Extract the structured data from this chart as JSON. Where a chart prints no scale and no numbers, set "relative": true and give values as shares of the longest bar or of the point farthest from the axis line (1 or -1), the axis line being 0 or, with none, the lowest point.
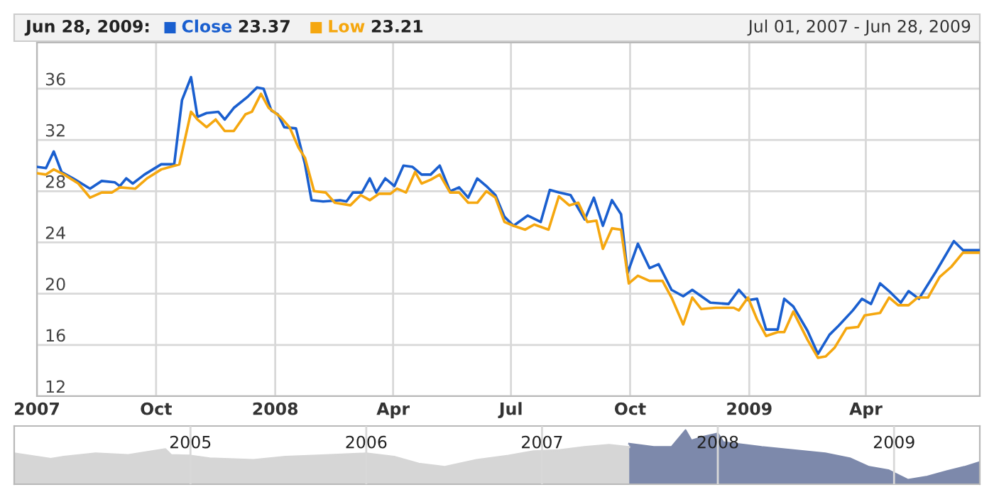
{
  "chart_data": [
    {
      "type": "line",
      "legend": "top left",
      "grid": true,
      "xlim": [
        "2007-07-01",
        "2009-06-28"
      ],
      "xticks": [
        {
          "value": "2007-07-01",
          "label": "2007"
        },
        {
          "value": "2007-10-01",
          "label": "Oct"
        },
        {
          "value": "2008-01-01",
          "label": "2008"
        },
        {
          "value": "2008-04-01",
          "label": "Apr"
        },
        {
          "value": "2008-07-01",
          "label": "Jul"
        },
        {
          "value": "2008-10-01",
          "label": "Oct"
        },
        {
          "value": "2009-01-01",
          "label": "2009"
        },
        {
          "value": "2009-04-01",
          "label": "Apr"
        }
      ],
      "ylim": [
        12,
        39.6
      ],
      "yticks": [
        12,
        16,
        20,
        24,
        28,
        32,
        36
      ],
      "annotations": [
        "Jun 28, 2009:",
        "23.37",
        "23.21",
        "Jul 01, 2007 - Jun 28, 2009"
      ],
      "series": [
        {
          "name": "Close",
          "color": "#1a5fcf",
          "x": [
            "2007-07-01",
            "2007-07-08",
            "2007-07-14",
            "2007-07-20",
            "2007-07-29",
            "2007-08-11",
            "2007-08-20",
            "2007-08-30",
            "2007-09-03",
            "2007-09-08",
            "2007-09-13",
            "2007-09-22",
            "2007-10-05",
            "2007-10-15",
            "2007-10-21",
            "2007-10-28",
            "2007-11-02",
            "2007-11-09",
            "2007-11-18",
            "2007-11-23",
            "2007-11-30",
            "2007-12-11",
            "2007-12-18",
            "2007-12-23",
            "2007-12-29",
            "2008-01-03",
            "2008-01-08",
            "2008-01-17",
            "2008-01-24",
            "2008-01-29",
            "2008-02-07",
            "2008-02-20",
            "2008-02-25",
            "2008-03-01",
            "2008-03-08",
            "2008-03-14",
            "2008-03-19",
            "2008-03-26",
            "2008-04-02",
            "2008-04-09",
            "2008-04-16",
            "2008-04-23",
            "2008-04-30",
            "2008-05-07",
            "2008-05-15",
            "2008-05-22",
            "2008-05-29",
            "2008-06-05",
            "2008-06-12",
            "2008-06-19",
            "2008-06-26",
            "2008-07-03",
            "2008-07-14",
            "2008-07-24",
            "2008-07-31",
            "2008-08-07",
            "2008-08-16",
            "2008-08-27",
            "2008-09-03",
            "2008-09-10",
            "2008-09-17",
            "2008-09-24",
            "2008-09-29",
            "2008-10-07",
            "2008-10-16",
            "2008-10-23",
            "2008-11-02",
            "2008-11-11",
            "2008-11-18",
            "2008-12-02",
            "2008-12-16",
            "2008-12-24",
            "2008-12-31",
            "2009-01-07",
            "2009-01-14",
            "2009-01-23",
            "2009-01-28",
            "2009-02-04",
            "2009-02-15",
            "2009-02-23",
            "2009-03-04",
            "2009-03-11",
            "2009-03-22",
            "2009-03-29",
            "2009-04-05",
            "2009-04-12",
            "2009-04-19",
            "2009-04-28",
            "2009-05-04",
            "2009-05-12",
            "2009-05-25",
            "2009-06-08",
            "2009-06-15",
            "2009-06-28"
          ],
          "values": [
            29.9,
            29.8,
            31.1,
            29.5,
            29.0,
            28.2,
            28.8,
            28.7,
            28.4,
            29.0,
            28.6,
            29.3,
            30.1,
            30.1,
            35.1,
            36.9,
            33.8,
            34.1,
            34.2,
            33.6,
            34.5,
            35.4,
            36.1,
            36.0,
            34.3,
            34.0,
            33.0,
            32.9,
            30.1,
            27.3,
            27.2,
            27.3,
            27.2,
            27.9,
            27.9,
            29.0,
            27.9,
            29.0,
            28.4,
            30.0,
            29.9,
            29.3,
            29.3,
            30.0,
            28.0,
            28.3,
            27.5,
            29.0,
            28.4,
            27.7,
            26.0,
            25.3,
            26.1,
            25.6,
            28.1,
            27.9,
            27.7,
            25.8,
            27.5,
            25.3,
            27.3,
            26.2,
            21.6,
            23.9,
            22.0,
            22.3,
            20.3,
            19.8,
            20.3,
            19.3,
            19.2,
            20.3,
            19.5,
            19.6,
            17.2,
            17.2,
            19.6,
            19.0,
            17.1,
            15.3,
            16.8,
            17.5,
            18.7,
            19.6,
            19.2,
            20.8,
            20.2,
            19.3,
            20.2,
            19.6,
            21.7,
            24.1,
            23.4,
            23.4
          ]
        },
        {
          "name": "Low",
          "color": "#f5a70f",
          "x": [
            "2007-07-01",
            "2007-07-08",
            "2007-07-14",
            "2007-07-22",
            "2007-08-02",
            "2007-08-11",
            "2007-08-20",
            "2007-08-28",
            "2007-09-03",
            "2007-09-15",
            "2007-09-24",
            "2007-10-05",
            "2007-10-19",
            "2007-10-28",
            "2007-11-02",
            "2007-11-09",
            "2007-11-16",
            "2007-11-23",
            "2007-11-30",
            "2007-12-09",
            "2007-12-14",
            "2007-12-21",
            "2007-12-27",
            "2008-01-05",
            "2008-01-12",
            "2008-01-19",
            "2008-01-24",
            "2008-01-31",
            "2008-02-09",
            "2008-02-16",
            "2008-02-28",
            "2008-03-07",
            "2008-03-14",
            "2008-03-21",
            "2008-03-30",
            "2008-04-04",
            "2008-04-11",
            "2008-04-18",
            "2008-04-23",
            "2008-04-30",
            "2008-05-07",
            "2008-05-15",
            "2008-05-22",
            "2008-05-29",
            "2008-06-05",
            "2008-06-12",
            "2008-06-19",
            "2008-06-26",
            "2008-07-03",
            "2008-07-12",
            "2008-07-19",
            "2008-07-30",
            "2008-08-07",
            "2008-08-15",
            "2008-08-22",
            "2008-08-29",
            "2008-09-05",
            "2008-09-10",
            "2008-09-17",
            "2008-09-24",
            "2008-09-30",
            "2008-10-07",
            "2008-10-16",
            "2008-10-26",
            "2008-11-02",
            "2008-11-11",
            "2008-11-18",
            "2008-11-25",
            "2008-12-06",
            "2008-12-20",
            "2008-12-24",
            "2008-12-31",
            "2009-01-07",
            "2009-01-14",
            "2009-01-23",
            "2009-01-28",
            "2009-02-04",
            "2009-02-15",
            "2009-02-23",
            "2009-03-01",
            "2009-03-08",
            "2009-03-17",
            "2009-03-26",
            "2009-03-31",
            "2009-04-12",
            "2009-04-19",
            "2009-04-26",
            "2009-05-04",
            "2009-05-11",
            "2009-05-19",
            "2009-05-28",
            "2009-06-06",
            "2009-06-15",
            "2009-06-28"
          ],
          "values": [
            29.4,
            29.3,
            29.7,
            29.3,
            28.6,
            27.5,
            27.9,
            27.9,
            28.3,
            28.2,
            29.0,
            29.7,
            30.1,
            34.2,
            33.6,
            33.0,
            33.6,
            32.7,
            32.7,
            34.0,
            34.2,
            35.6,
            34.5,
            33.8,
            33.0,
            31.4,
            30.6,
            28.0,
            27.9,
            27.1,
            26.9,
            27.7,
            27.3,
            27.8,
            27.8,
            28.2,
            27.9,
            29.5,
            28.6,
            28.9,
            29.3,
            27.9,
            27.9,
            27.1,
            27.1,
            28.0,
            27.5,
            25.6,
            25.3,
            25.0,
            25.4,
            25.0,
            27.6,
            26.9,
            27.1,
            25.6,
            25.7,
            23.5,
            25.1,
            25.0,
            20.8,
            21.4,
            21.0,
            21.0,
            19.7,
            17.6,
            19.7,
            18.8,
            18.9,
            18.9,
            18.7,
            19.7,
            18.0,
            16.7,
            17.0,
            17.0,
            18.6,
            16.4,
            15.0,
            15.1,
            15.8,
            17.3,
            17.4,
            18.3,
            18.5,
            19.7,
            19.1,
            19.1,
            19.7,
            19.7,
            21.3,
            22.1,
            23.2,
            23.2
          ]
        }
      ]
    },
    {
      "type": "area",
      "relative": true,
      "grid": "x",
      "tick_labels": "x",
      "xlim": [
        "2004-01-01",
        "2009-06-28"
      ],
      "xticks": [
        {
          "value": "2005-01-01",
          "label": "2005"
        },
        {
          "value": "2006-01-01",
          "label": "2006"
        },
        {
          "value": "2007-01-01",
          "label": "2007"
        },
        {
          "value": "2008-01-01",
          "label": "2008"
        },
        {
          "value": "2009-01-01",
          "label": "2009"
        }
      ],
      "series": [
        {
          "color": "#d6d6d6",
          "x": [
            "2004-01-01",
            "2004-03-17",
            "2004-04-13",
            "2004-06-18",
            "2004-08-23",
            "2004-11-10",
            "2004-11-22",
            "2005-01-01",
            "2005-02-10",
            "2005-05-12",
            "2005-07-17",
            "2005-09-22",
            "2006-01-01",
            "2006-02-28",
            "2006-04-20",
            "2006-06-13",
            "2006-08-18",
            "2006-10-23",
            "2006-12-14",
            "2007-02-05",
            "2007-03-30",
            "2007-05-20",
            "2007-07-01"
          ],
          "values": [
            0.57,
            0.47,
            0.51,
            0.57,
            0.54,
            0.65,
            0.54,
            0.53,
            0.48,
            0.45,
            0.51,
            0.53,
            0.57,
            0.51,
            0.38,
            0.32,
            0.45,
            0.53,
            0.61,
            0.63,
            0.69,
            0.73,
            0.69
          ]
        },
        {
          "color": "#7d89ab",
          "x": [
            "2007-07-01",
            "2007-08-21",
            "2007-09-27",
            "2007-10-26",
            "2007-11-07",
            "2007-12-03",
            "2008-01-01",
            "2008-01-12",
            "2008-04-01",
            "2008-06-06",
            "2008-08-11",
            "2008-10-01",
            "2008-11-10",
            "2008-12-20",
            "2009-01-30",
            "2009-03-11",
            "2009-04-20",
            "2009-05-27",
            "2009-06-28"
          ],
          "values": [
            0.75,
            0.69,
            0.69,
            1.0,
            0.81,
            0.88,
            0.94,
            0.78,
            0.69,
            0.63,
            0.57,
            0.48,
            0.32,
            0.26,
            0.08,
            0.14,
            0.24,
            0.32,
            0.41
          ]
        }
      ]
    }
  ]
}
